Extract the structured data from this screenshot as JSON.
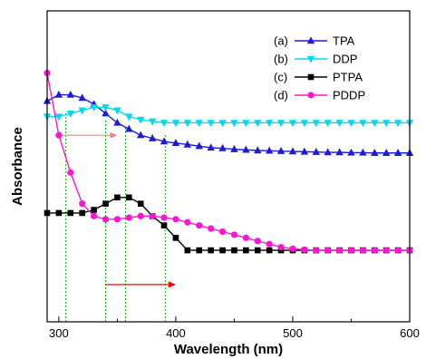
{
  "chart_data": {
    "type": "line",
    "title": "",
    "xlabel": "Wavelength (nm)",
    "ylabel": "Absorbance",
    "xlim": [
      290,
      600
    ],
    "ylim": [
      0,
      1
    ],
    "x_ticks": [
      300,
      400,
      500,
      600
    ],
    "y_ticks_shown": false,
    "grid": false,
    "legend_position": "top-right",
    "series": [
      {
        "legend_prefix": "(a)",
        "name": "TPA",
        "color": "#1c1cd6",
        "marker": "triangle-up",
        "x": [
          290,
          300,
          310,
          320,
          330,
          340,
          350,
          360,
          370,
          380,
          390,
          400,
          410,
          420,
          430,
          440,
          450,
          460,
          470,
          480,
          490,
          500,
          510,
          520,
          530,
          540,
          550,
          560,
          570,
          580,
          590,
          600
        ],
        "y": [
          0.71,
          0.73,
          0.73,
          0.72,
          0.7,
          0.67,
          0.64,
          0.62,
          0.6,
          0.59,
          0.58,
          0.575,
          0.57,
          0.565,
          0.56,
          0.558,
          0.555,
          0.553,
          0.551,
          0.55,
          0.549,
          0.548,
          0.547,
          0.546,
          0.545,
          0.545,
          0.544,
          0.544,
          0.543,
          0.543,
          0.543,
          0.543
        ]
      },
      {
        "legend_prefix": "(b)",
        "name": "DDP",
        "color": "#00d8ef",
        "marker": "triangle-down",
        "x": [
          290,
          300,
          310,
          320,
          330,
          340,
          350,
          360,
          370,
          380,
          390,
          400,
          410,
          420,
          430,
          440,
          450,
          460,
          470,
          480,
          490,
          500,
          510,
          520,
          530,
          540,
          550,
          560,
          570,
          580,
          590,
          600
        ],
        "y": [
          0.66,
          0.66,
          0.67,
          0.68,
          0.69,
          0.69,
          0.68,
          0.66,
          0.65,
          0.645,
          0.64,
          0.64,
          0.64,
          0.64,
          0.64,
          0.64,
          0.64,
          0.64,
          0.64,
          0.64,
          0.64,
          0.64,
          0.64,
          0.64,
          0.64,
          0.64,
          0.64,
          0.64,
          0.64,
          0.64,
          0.64,
          0.64
        ]
      },
      {
        "legend_prefix": "(c)",
        "name": "PTPA",
        "color": "#000000",
        "marker": "square",
        "x": [
          290,
          300,
          310,
          320,
          330,
          340,
          350,
          360,
          370,
          380,
          390,
          400,
          410,
          420,
          430,
          440,
          450,
          460,
          470,
          480,
          490,
          500,
          510,
          520,
          530,
          540,
          550,
          560,
          570,
          580,
          590,
          600
        ],
        "y": [
          0.35,
          0.35,
          0.35,
          0.35,
          0.36,
          0.38,
          0.4,
          0.4,
          0.38,
          0.34,
          0.31,
          0.27,
          0.23,
          0.23,
          0.23,
          0.23,
          0.23,
          0.23,
          0.23,
          0.23,
          0.23,
          0.23,
          0.23,
          0.23,
          0.23,
          0.23,
          0.23,
          0.23,
          0.23,
          0.23,
          0.23,
          0.23
        ]
      },
      {
        "legend_prefix": "(d)",
        "name": "PDDP",
        "color": "#ff14d4",
        "marker": "circle",
        "x": [
          290,
          300,
          310,
          320,
          330,
          340,
          350,
          360,
          370,
          380,
          390,
          400,
          410,
          420,
          430,
          440,
          450,
          460,
          470,
          480,
          490,
          500,
          510,
          520,
          530,
          540,
          550,
          560,
          570,
          580,
          590,
          600
        ],
        "y": [
          0.8,
          0.6,
          0.48,
          0.38,
          0.34,
          0.33,
          0.33,
          0.335,
          0.34,
          0.34,
          0.335,
          0.33,
          0.32,
          0.31,
          0.3,
          0.29,
          0.28,
          0.27,
          0.26,
          0.25,
          0.24,
          0.235,
          0.232,
          0.23,
          0.23,
          0.23,
          0.23,
          0.23,
          0.23,
          0.23,
          0.23,
          0.23
        ]
      }
    ],
    "guide_lines": {
      "color": "#00c000",
      "x": [
        306,
        340,
        357,
        391
      ]
    },
    "arrows": [
      {
        "x_start": 300,
        "x_end": 350,
        "y": 0.6,
        "color": "#ff8080"
      },
      {
        "x_start": 340,
        "x_end": 400,
        "y": 0.12,
        "color": "#ff0000"
      }
    ]
  }
}
